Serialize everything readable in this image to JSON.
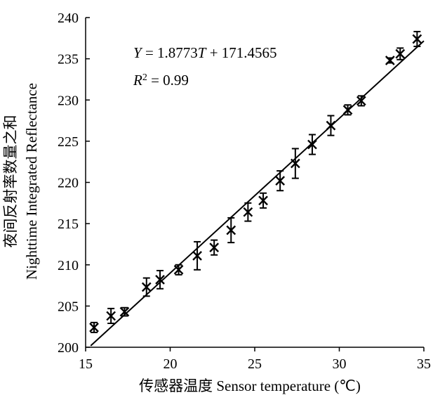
{
  "chart_data": {
    "type": "scatter",
    "xlabel": "传感器温度 Sensor temperature (℃)",
    "ylabel_line1": "夜间反射率数量之和",
    "ylabel_line2": "Nighttime Integrated Reflectance",
    "xlim": [
      15,
      35
    ],
    "ylim": [
      200,
      240
    ],
    "xticks": [
      15,
      20,
      25,
      30,
      35
    ],
    "yticks": [
      200,
      205,
      210,
      215,
      220,
      225,
      230,
      235,
      240
    ],
    "grid": false,
    "marker": "x",
    "annotations": {
      "equation": "Y = 1.8773T + 171.4565",
      "r_squared": "R2 = 0.99"
    },
    "fit_line": {
      "slope": 1.8773,
      "intercept": 171.4565,
      "x_range": [
        15.3,
        35
      ]
    },
    "points": [
      {
        "x": 15.5,
        "y": 202.4,
        "err": 0.6
      },
      {
        "x": 16.5,
        "y": 203.8,
        "err": 0.9
      },
      {
        "x": 17.3,
        "y": 204.3,
        "err": 0.5
      },
      {
        "x": 18.6,
        "y": 207.3,
        "err": 1.1
      },
      {
        "x": 19.4,
        "y": 208.2,
        "err": 1.1
      },
      {
        "x": 20.5,
        "y": 209.4,
        "err": 0.6
      },
      {
        "x": 21.6,
        "y": 211.1,
        "err": 1.7
      },
      {
        "x": 22.6,
        "y": 212.1,
        "err": 0.9
      },
      {
        "x": 23.6,
        "y": 214.2,
        "err": 1.5
      },
      {
        "x": 24.6,
        "y": 216.4,
        "err": 1.1
      },
      {
        "x": 25.5,
        "y": 217.8,
        "err": 0.9
      },
      {
        "x": 26.5,
        "y": 220.2,
        "err": 1.2
      },
      {
        "x": 27.4,
        "y": 222.3,
        "err": 1.8
      },
      {
        "x": 28.4,
        "y": 224.6,
        "err": 1.2
      },
      {
        "x": 29.5,
        "y": 226.9,
        "err": 1.2
      },
      {
        "x": 30.5,
        "y": 228.8,
        "err": 0.6
      },
      {
        "x": 31.3,
        "y": 229.9,
        "err": 0.6
      },
      {
        "x": 33.0,
        "y": 234.8,
        "err": 0.3
      },
      {
        "x": 33.6,
        "y": 235.6,
        "err": 0.7
      },
      {
        "x": 34.6,
        "y": 237.4,
        "err": 0.9
      }
    ]
  }
}
